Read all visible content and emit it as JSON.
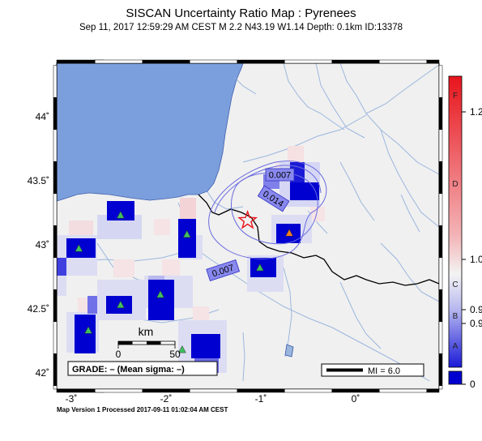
{
  "title": "SISCAN Uncertainty Ratio Map : Pyrenees",
  "subtitle": "Sep 11, 2017 12:59:29 AM CEST   M 2.2    N43.19 W1.14    Depth: 0.1km    ID:13378",
  "footer": "Map Version 1 Processed 2017-09-11 01:02:04 AM CEST",
  "axes": {
    "lon_ticks": [
      {
        "value": -3,
        "label": "-3˚"
      },
      {
        "value": -2,
        "label": "-2˚"
      },
      {
        "value": -1,
        "label": "-1˚"
      },
      {
        "value": 0,
        "label": "0˚"
      }
    ],
    "lat_ticks": [
      {
        "value": 44,
        "label": "44˚"
      },
      {
        "value": 43.5,
        "label": "43.5˚"
      },
      {
        "value": 43,
        "label": "43˚"
      },
      {
        "value": 42.5,
        "label": "42.5˚"
      },
      {
        "value": 42,
        "label": "42˚"
      }
    ]
  },
  "epicenter": {
    "lat": 43.19,
    "lon": -1.14,
    "symbol": "star",
    "color": "#e8141c"
  },
  "contours": [
    {
      "label": "0.007"
    },
    {
      "label": "0.014"
    },
    {
      "label": "0.007"
    }
  ],
  "stations": [
    {
      "lat": 43.23,
      "lon": -2.48,
      "color": "#3fbf5f"
    },
    {
      "lat": 42.97,
      "lon": -2.92,
      "color": "#3fbf5f"
    },
    {
      "lat": 43.08,
      "lon": -1.78,
      "color": "#3fbf5f"
    },
    {
      "lat": 43.09,
      "lon": -0.7,
      "color": "#f08020"
    },
    {
      "lat": 42.82,
      "lon": -1.01,
      "color": "#3fbf5f"
    },
    {
      "lat": 42.61,
      "lon": -2.06,
      "color": "#3fbf5f"
    },
    {
      "lat": 42.53,
      "lon": -2.48,
      "color": "#3fbf5f"
    },
    {
      "lat": 42.33,
      "lon": -2.82,
      "color": "#3fbf5f"
    },
    {
      "lat": 42.18,
      "lon": -1.83,
      "color": "#3fbf5f"
    }
  ],
  "scalebar": {
    "title": "km",
    "start_label": "0",
    "end_label": "50"
  },
  "grade_box": {
    "text": "GRADE: – (Mean sigma: –)"
  },
  "mi_legend": {
    "text": "MI = 6.0"
  },
  "colorbar": {
    "grades": [
      "F",
      "D",
      "C",
      "B",
      "A"
    ],
    "value_labels": [
      "1.2",
      "1.0",
      "0.9",
      "0.9",
      "0"
    ],
    "colors": [
      "#e8141c",
      "#f3b5b8",
      "#f3f3f3",
      "#b8b8f0",
      "#0000d0"
    ]
  },
  "colors": {
    "water": "#7b9fdc",
    "land": "#f0f0f0",
    "river": "#9bb6de",
    "border": "#000000",
    "frame": "#000000"
  }
}
